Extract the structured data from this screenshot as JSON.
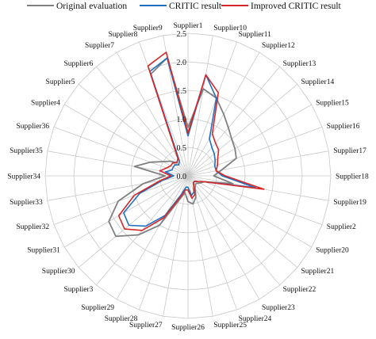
{
  "chart_data": {
    "type": "radar",
    "categories": [
      "Supplier1",
      "Supplier10",
      "Supplier11",
      "Supplier12",
      "Supplier13",
      "Supplier14",
      "Supplier15",
      "Supplier16",
      "Supplier17",
      "Supplier18",
      "Supplier19",
      "Supplier2",
      "Supplier20",
      "Supplier21",
      "Supplier22",
      "Supplier23",
      "Supplier24",
      "Supplier25",
      "Supplier26",
      "Supplier27",
      "Supplier28",
      "Supplier29",
      "Supplier3",
      "Supplier30",
      "Supplier31",
      "Supplier32",
      "Supplier33",
      "Supplier34",
      "Supplier35",
      "Supplier36",
      "Supplier4",
      "Supplier5",
      "Supplier6",
      "Supplier7",
      "Supplier8",
      "Supplier9"
    ],
    "rlim": [
      0,
      2.5
    ],
    "r_ticks": [
      "0.0",
      "0.5",
      "1.0",
      "1.5",
      "2.0",
      "2.5"
    ],
    "r_tick_values": [
      0,
      0.5,
      1.0,
      1.5,
      2.0,
      2.5
    ],
    "grid": true,
    "legend": "top",
    "series": [
      {
        "name": "Original evaluation",
        "color": "#808080",
        "values": [
          0.85,
          1.55,
          1.45,
          1.25,
          1.1,
          1.0,
          0.95,
          0.9,
          0.6,
          0.45,
          0.8,
          0.3,
          0.25,
          0.2,
          0.2,
          0.25,
          0.4,
          0.5,
          0.45,
          0.3,
          0.45,
          1.0,
          1.35,
          1.65,
          1.6,
          1.3,
          0.8,
          0.4,
          0.95,
          0.7,
          0.5,
          0.4,
          0.3,
          0.35,
          1.9,
          2.1
        ]
      },
      {
        "name": "CRITIC result",
        "color": "#1f6fbf",
        "values": [
          0.7,
          1.8,
          1.45,
          0.75,
          0.65,
          0.6,
          0.55,
          0.5,
          0.5,
          0.6,
          1.2,
          0.3,
          0.2,
          0.15,
          0.15,
          0.2,
          0.3,
          0.35,
          0.2,
          0.2,
          0.35,
          0.8,
          1.15,
          1.35,
          1.3,
          0.9,
          0.45,
          0.25,
          0.4,
          0.3,
          0.3,
          0.3,
          0.25,
          0.3,
          1.95,
          2.1
        ]
      },
      {
        "name": "Improved CRITIC result",
        "color": "#d62728",
        "values": [
          0.75,
          1.8,
          1.55,
          0.85,
          0.75,
          0.7,
          0.6,
          0.55,
          0.5,
          0.65,
          1.35,
          0.3,
          0.2,
          0.15,
          0.15,
          0.2,
          0.35,
          0.4,
          0.25,
          0.25,
          0.4,
          0.85,
          1.25,
          1.45,
          1.4,
          1.0,
          0.5,
          0.3,
          0.5,
          0.4,
          0.35,
          0.35,
          0.3,
          0.35,
          2.05,
          2.2
        ]
      }
    ]
  }
}
